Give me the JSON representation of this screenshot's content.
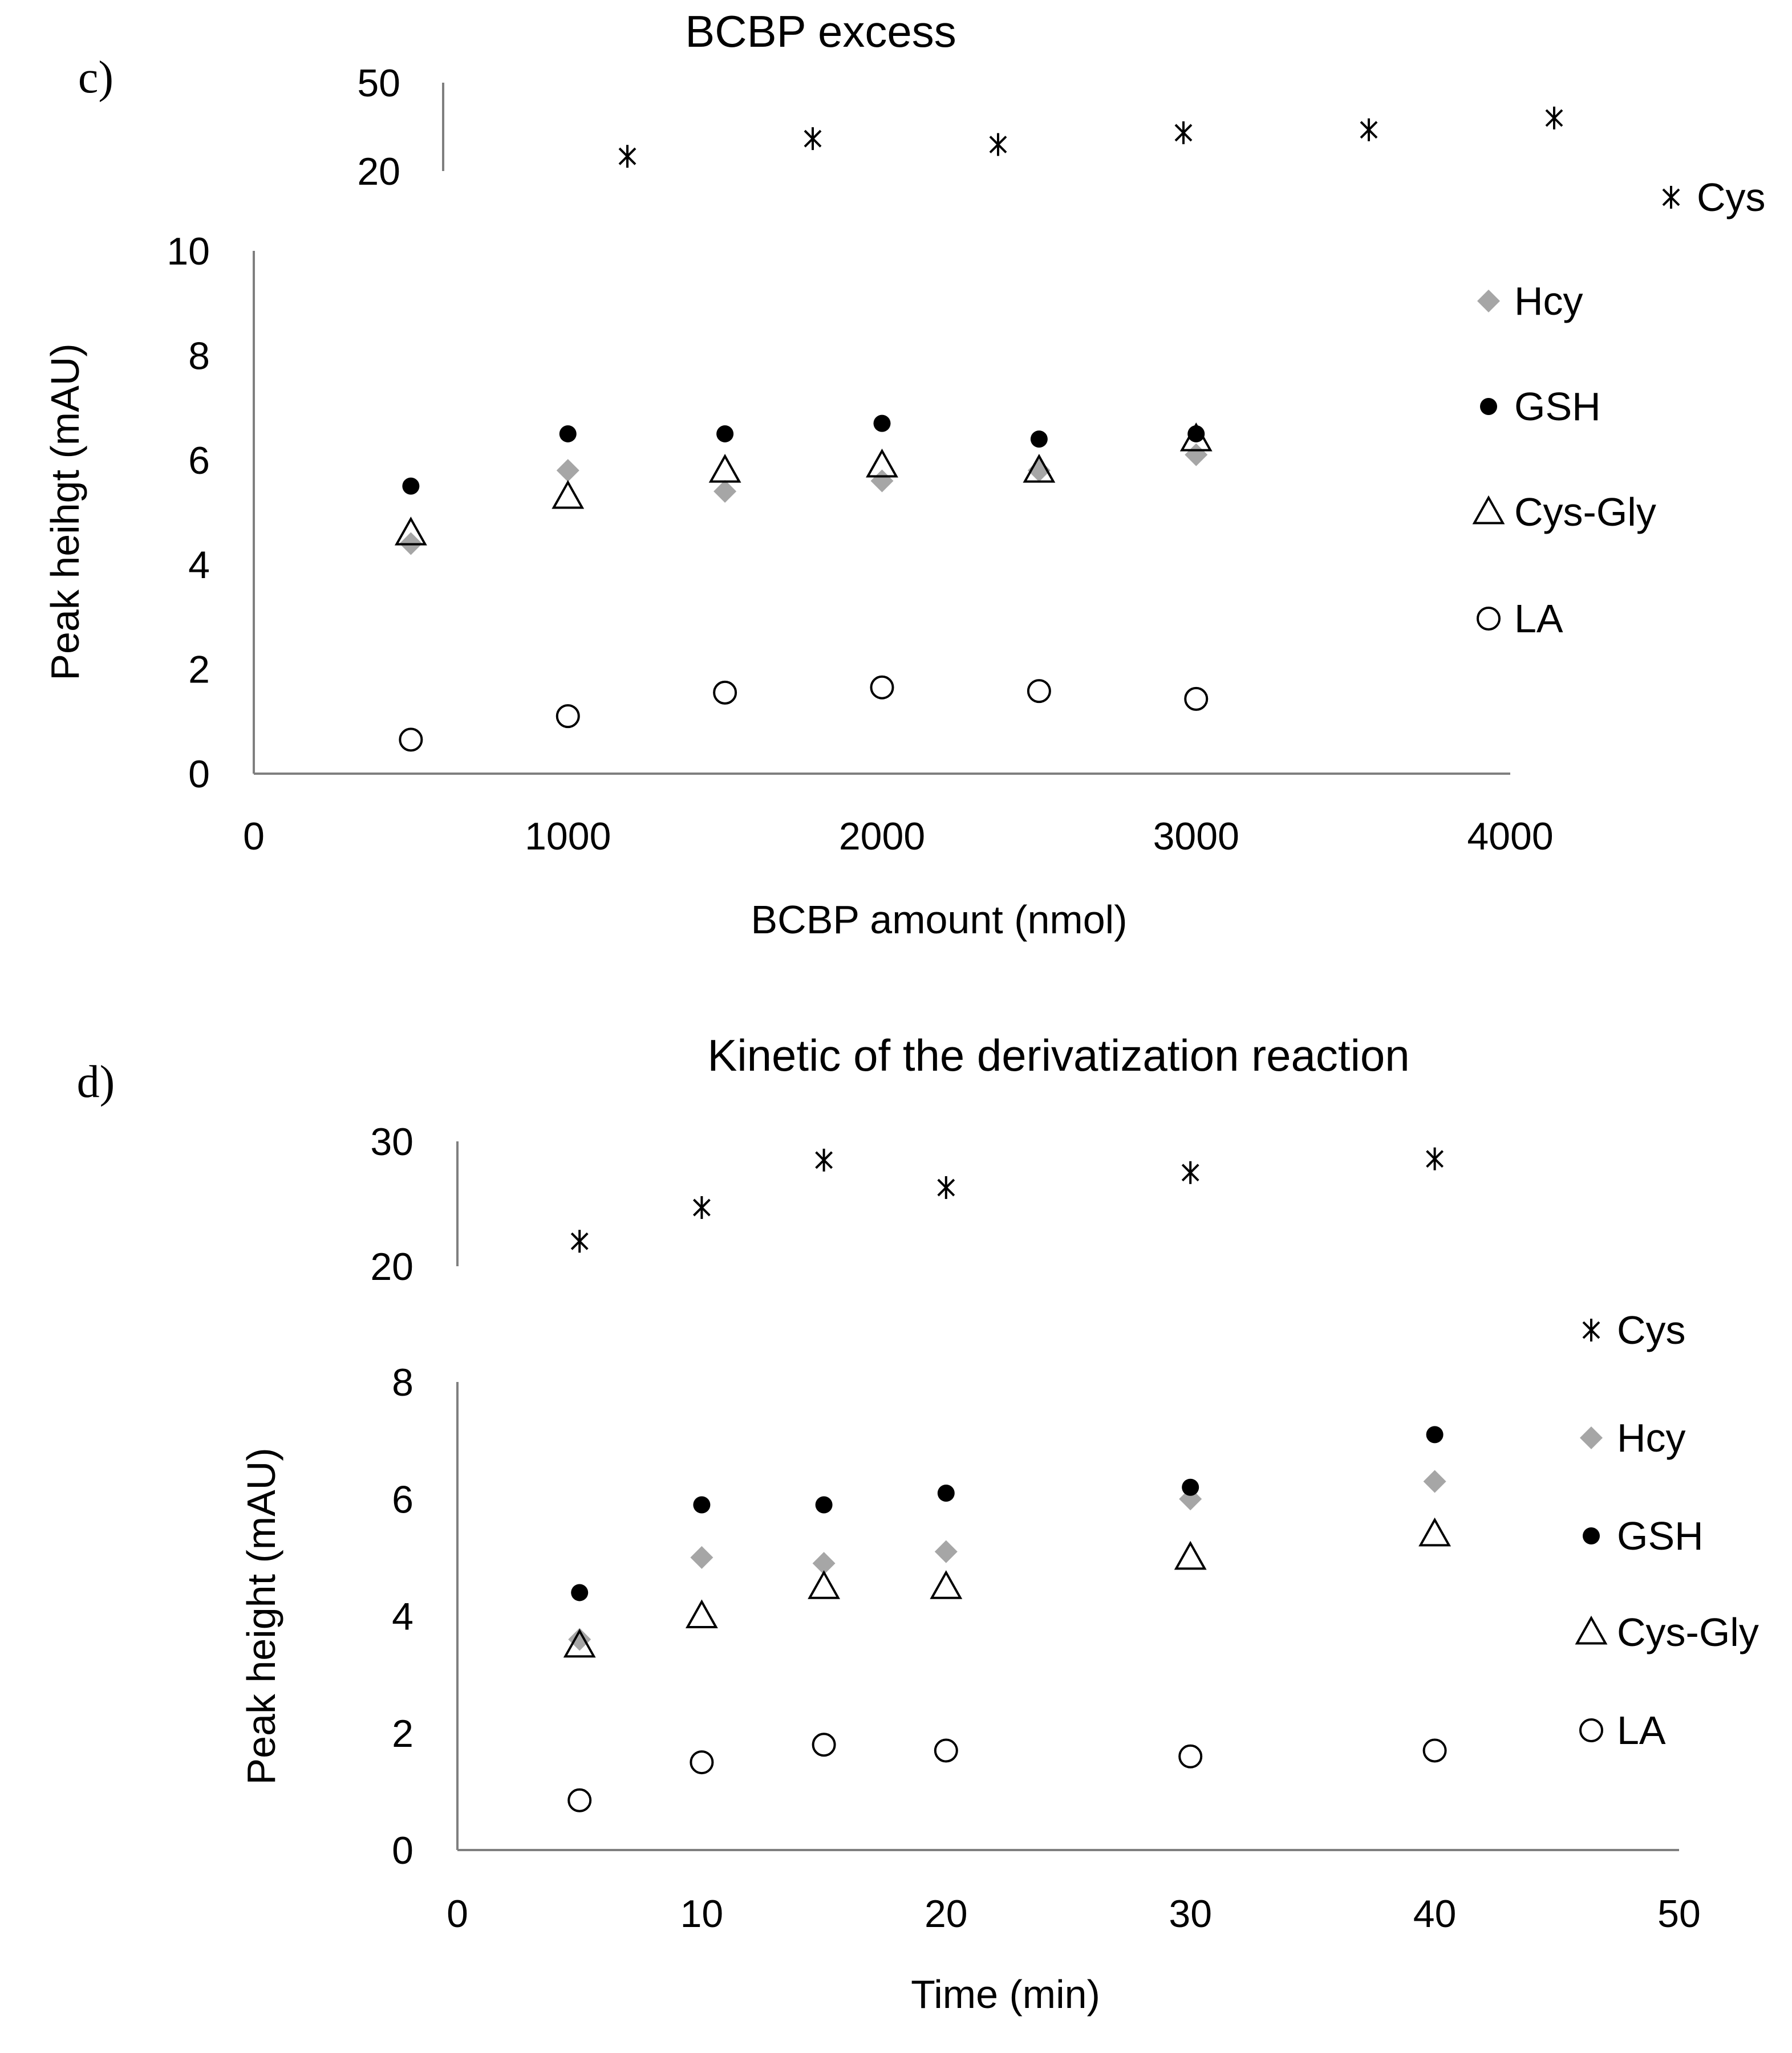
{
  "colors": {
    "axis": "#7f7f7f",
    "cys": "#000000",
    "hcy": "#a6a6a6",
    "gsh": "#000000",
    "cys_gly": "#000000",
    "la": "#000000"
  },
  "chart_data": [
    {
      "type": "scatter",
      "panel_label": "c)",
      "title": "BCBP excess",
      "xlabel": "BCBP  amount (nmol)",
      "ylabel": "Peak heihgt (mAU)",
      "xlim": [
        0,
        4000
      ],
      "ylim_lower": [
        0,
        10
      ],
      "ylim_upper": [
        20,
        50
      ],
      "x_ticks": [
        "0",
        "1000",
        "2000",
        "3000",
        "4000"
      ],
      "y_ticks_lower": [
        "0",
        "2",
        "4",
        "6",
        "8",
        "10"
      ],
      "y_ticks_upper": [
        "20",
        "50"
      ],
      "axis_break": "y-axis split into lower panel (0–10) and upper panel (20–50)",
      "legend_position": "right",
      "series": [
        {
          "name": "Cys",
          "marker": "asterisk",
          "panel": "upper",
          "legend_label": "Cys",
          "x": [
            500,
            1000,
            1500,
            2000,
            2500,
            3000
          ],
          "y": [
            25,
            31,
            29,
            33,
            34,
            38
          ]
        },
        {
          "name": "Hcy",
          "marker": "diamond",
          "panel": "lower",
          "legend_label": "Hcy",
          "x": [
            500,
            1000,
            1500,
            2000,
            2500,
            3000
          ],
          "y": [
            4.4,
            5.8,
            5.4,
            5.6,
            5.8,
            6.1
          ]
        },
        {
          "name": "GSH",
          "marker": "dot",
          "panel": "lower",
          "legend_label": "GSH",
          "x": [
            500,
            1000,
            1500,
            2000,
            2500,
            3000
          ],
          "y": [
            5.5,
            6.5,
            6.5,
            6.7,
            6.4,
            6.5
          ]
        },
        {
          "name": "Cys-Gly",
          "marker": "triangle",
          "panel": "lower",
          "legend_label": "Cys-Gly",
          "x": [
            500,
            1000,
            1500,
            2000,
            2500,
            3000
          ],
          "y": [
            4.6,
            5.3,
            5.8,
            5.9,
            5.8,
            6.4
          ]
        },
        {
          "name": "LA",
          "marker": "circle",
          "panel": "lower",
          "legend_label": "LA",
          "x": [
            500,
            1000,
            1500,
            2000,
            2500,
            3000
          ],
          "y": [
            0.65,
            1.1,
            1.55,
            1.65,
            1.58,
            1.43
          ]
        }
      ]
    },
    {
      "type": "scatter",
      "panel_label": "d)",
      "title": "Kinetic of the derivatization reaction",
      "xlabel": "Time (min)",
      "ylabel": "Peak height (mAU)",
      "xlim": [
        0,
        50
      ],
      "ylim_lower": [
        0,
        8
      ],
      "ylim_upper": [
        20,
        30
      ],
      "x_ticks": [
        "0",
        "10",
        "20",
        "30",
        "40",
        "50"
      ],
      "y_ticks_lower": [
        "0",
        "2",
        "4",
        "6",
        "8"
      ],
      "y_ticks_upper": [
        "20",
        "30"
      ],
      "axis_break": "y-axis split into lower panel (0–8) and upper panel (20–30)",
      "legend_position": "right",
      "series": [
        {
          "name": "Cys",
          "marker": "asterisk",
          "panel": "upper",
          "legend_label": "Cys",
          "x": [
            5,
            10,
            15,
            20,
            30,
            40
          ],
          "y": [
            22,
            24.7,
            28.5,
            26.3,
            27.5,
            28.6
          ]
        },
        {
          "name": "Hcy",
          "marker": "diamond",
          "panel": "lower",
          "legend_label": "Hcy",
          "x": [
            5,
            10,
            15,
            20,
            30,
            40
          ],
          "y": [
            3.6,
            5.0,
            4.9,
            5.1,
            6.0,
            6.3
          ]
        },
        {
          "name": "GSH",
          "marker": "dot",
          "panel": "lower",
          "legend_label": "GSH",
          "x": [
            5,
            10,
            15,
            20,
            30,
            40
          ],
          "y": [
            4.4,
            5.9,
            5.9,
            6.1,
            6.2,
            7.1
          ]
        },
        {
          "name": "Cys-Gly",
          "marker": "triangle",
          "panel": "lower",
          "legend_label": "Cys-Gly",
          "x": [
            5,
            10,
            15,
            20,
            30,
            40
          ],
          "y": [
            3.5,
            4.0,
            4.5,
            4.5,
            5.0,
            5.4
          ]
        },
        {
          "name": "LA",
          "marker": "circle",
          "panel": "lower",
          "legend_label": "LA",
          "x": [
            5,
            10,
            15,
            20,
            30,
            40
          ],
          "y": [
            0.85,
            1.5,
            1.8,
            1.7,
            1.6,
            1.7
          ]
        }
      ]
    }
  ]
}
